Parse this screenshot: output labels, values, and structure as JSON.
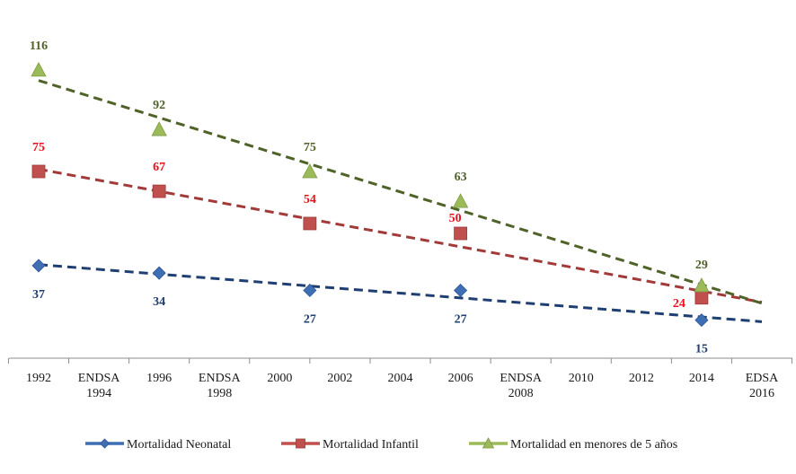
{
  "chart_data": {
    "type": "line",
    "title": "",
    "xlabel": "",
    "ylabel": "",
    "x_axis": {
      "ticks": [
        {
          "year": 1992,
          "label": [
            "1992"
          ]
        },
        {
          "year": 1994,
          "label": [
            "ENDSA",
            "1994"
          ]
        },
        {
          "year": 1996,
          "label": [
            "1996"
          ]
        },
        {
          "year": 1998,
          "label": [
            "ENDSA",
            "1998"
          ]
        },
        {
          "year": 2000,
          "label": [
            "2000"
          ]
        },
        {
          "year": 2002,
          "label": [
            "2002"
          ]
        },
        {
          "year": 2004,
          "label": [
            "2004"
          ]
        },
        {
          "year": 2006,
          "label": [
            "2006"
          ]
        },
        {
          "year": 2008,
          "label": [
            "ENDSA",
            "2008"
          ]
        },
        {
          "year": 2010,
          "label": [
            "2010"
          ]
        },
        {
          "year": 2012,
          "label": [
            "2012"
          ]
        },
        {
          "year": 2014,
          "label": [
            "2014"
          ]
        },
        {
          "year": 2016,
          "label": [
            "EDSA",
            "2016"
          ]
        }
      ],
      "range": [
        1992,
        2016
      ]
    },
    "ylim": [
      0,
      130
    ],
    "grid": false,
    "legend_position": "bottom",
    "trendlines": true,
    "series": [
      {
        "name": "Mortalidad Neonatal",
        "color": "#3e6fb5",
        "trend_color": "#1f3f72",
        "marker": "diamond",
        "x": [
          1992,
          1996,
          2001,
          2006,
          2014
        ],
        "values": [
          37,
          34,
          27,
          27,
          15
        ],
        "labels": [
          "37",
          "34",
          "27",
          "27",
          "15"
        ]
      },
      {
        "name": "Mortalidad Infantil",
        "color": "#c0504d",
        "trend_color": "#a33a3a",
        "label_color": "#e8121e",
        "marker": "square",
        "x": [
          1992,
          1996,
          2001,
          2006,
          2014
        ],
        "values": [
          75,
          67,
          54,
          50,
          24
        ],
        "labels": [
          "75",
          "67",
          "54",
          "50",
          "24"
        ]
      },
      {
        "name": "Mortalidad en menores de 5 años",
        "color": "#9bbb59",
        "trend_color": "#4f6228",
        "label_color": "#4f6228",
        "marker": "triangle",
        "x": [
          1992,
          1996,
          2001,
          2006,
          2014
        ],
        "values": [
          116,
          92,
          75,
          63,
          29
        ],
        "labels": [
          "116",
          "92",
          "75",
          "63",
          "29"
        ]
      }
    ]
  }
}
